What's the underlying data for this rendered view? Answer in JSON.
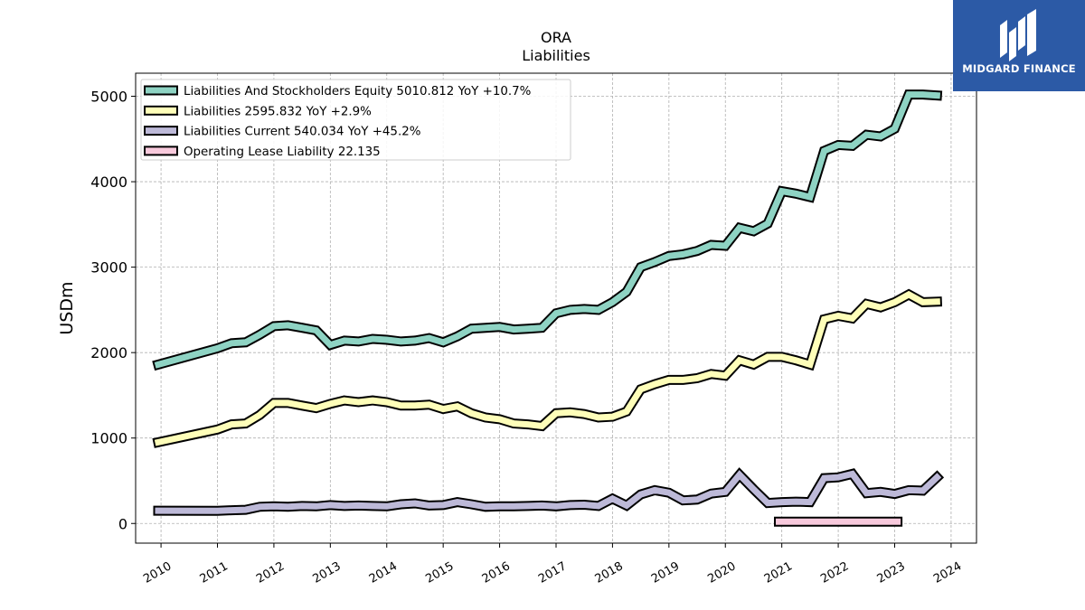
{
  "title": "ORA",
  "subtitle": "Liabilities",
  "logo": {
    "text": "MIDGARD FINANCE"
  },
  "colors": {
    "equity": "#8ed3c3",
    "liabilities": "#fefeb9",
    "current": "#bdb9d8",
    "lease": "#f8c9dc"
  },
  "chart_data": {
    "type": "line",
    "ylabel": "USDm",
    "ylim": [
      -230,
      5270
    ],
    "yticks": [
      0,
      1000,
      2000,
      3000,
      4000,
      5000
    ],
    "xlim": [
      2009.55,
      2024.45
    ],
    "xticks": [
      "2010",
      "2011",
      "2012",
      "2013",
      "2014",
      "2015",
      "2016",
      "2017",
      "2018",
      "2019",
      "2020",
      "2021",
      "2022",
      "2023",
      "2024"
    ],
    "grid": true,
    "legend_position": "top-left",
    "series": [
      {
        "name": "Liabilities And Stockholders Equity",
        "legend": "Liabilities And Stockholders Equity  5010.812 YoY +10.7%",
        "color_key": "equity",
        "points": [
          [
            2009.95,
            1860
          ],
          [
            2011.0,
            2050
          ],
          [
            2011.25,
            2110
          ],
          [
            2011.5,
            2120
          ],
          [
            2011.75,
            2210
          ],
          [
            2012.0,
            2310
          ],
          [
            2012.25,
            2320
          ],
          [
            2012.5,
            2290
          ],
          [
            2012.75,
            2260
          ],
          [
            2013.0,
            2090
          ],
          [
            2013.25,
            2140
          ],
          [
            2013.5,
            2130
          ],
          [
            2013.75,
            2160
          ],
          [
            2014.0,
            2150
          ],
          [
            2014.25,
            2130
          ],
          [
            2014.5,
            2140
          ],
          [
            2014.75,
            2170
          ],
          [
            2015.0,
            2120
          ],
          [
            2015.25,
            2190
          ],
          [
            2015.5,
            2280
          ],
          [
            2015.75,
            2290
          ],
          [
            2016.0,
            2300
          ],
          [
            2016.25,
            2270
          ],
          [
            2016.5,
            2280
          ],
          [
            2016.75,
            2290
          ],
          [
            2017.0,
            2460
          ],
          [
            2017.25,
            2500
          ],
          [
            2017.5,
            2510
          ],
          [
            2017.75,
            2500
          ],
          [
            2018.0,
            2590
          ],
          [
            2018.25,
            2710
          ],
          [
            2018.5,
            3000
          ],
          [
            2018.75,
            3060
          ],
          [
            2019.0,
            3130
          ],
          [
            2019.25,
            3150
          ],
          [
            2019.5,
            3190
          ],
          [
            2019.75,
            3260
          ],
          [
            2020.0,
            3250
          ],
          [
            2020.25,
            3460
          ],
          [
            2020.5,
            3420
          ],
          [
            2020.75,
            3510
          ],
          [
            2021.0,
            3890
          ],
          [
            2021.25,
            3860
          ],
          [
            2021.5,
            3820
          ],
          [
            2021.75,
            4360
          ],
          [
            2022.0,
            4430
          ],
          [
            2022.25,
            4420
          ],
          [
            2022.5,
            4550
          ],
          [
            2022.75,
            4530
          ],
          [
            2023.0,
            4620
          ],
          [
            2023.25,
            5020
          ],
          [
            2023.5,
            5020
          ],
          [
            2023.75,
            5010
          ]
        ]
      },
      {
        "name": "Liabilities",
        "legend": "Liabilities  2595.832 YoY +2.9%",
        "color_key": "liabilities",
        "points": [
          [
            2009.95,
            950
          ],
          [
            2011.0,
            1100
          ],
          [
            2011.25,
            1160
          ],
          [
            2011.5,
            1170
          ],
          [
            2011.75,
            1270
          ],
          [
            2012.0,
            1410
          ],
          [
            2012.25,
            1410
          ],
          [
            2012.5,
            1380
          ],
          [
            2012.75,
            1350
          ],
          [
            2013.0,
            1400
          ],
          [
            2013.25,
            1440
          ],
          [
            2013.5,
            1420
          ],
          [
            2013.75,
            1440
          ],
          [
            2014.0,
            1420
          ],
          [
            2014.25,
            1380
          ],
          [
            2014.5,
            1380
          ],
          [
            2014.75,
            1390
          ],
          [
            2015.0,
            1340
          ],
          [
            2015.25,
            1370
          ],
          [
            2015.5,
            1290
          ],
          [
            2015.75,
            1240
          ],
          [
            2016.0,
            1220
          ],
          [
            2016.25,
            1170
          ],
          [
            2016.5,
            1160
          ],
          [
            2016.75,
            1140
          ],
          [
            2017.0,
            1290
          ],
          [
            2017.25,
            1300
          ],
          [
            2017.5,
            1280
          ],
          [
            2017.75,
            1240
          ],
          [
            2018.0,
            1250
          ],
          [
            2018.25,
            1310
          ],
          [
            2018.5,
            1570
          ],
          [
            2018.75,
            1630
          ],
          [
            2019.0,
            1680
          ],
          [
            2019.25,
            1680
          ],
          [
            2019.5,
            1700
          ],
          [
            2019.75,
            1750
          ],
          [
            2020.0,
            1730
          ],
          [
            2020.25,
            1910
          ],
          [
            2020.5,
            1860
          ],
          [
            2020.75,
            1950
          ],
          [
            2021.0,
            1950
          ],
          [
            2021.25,
            1910
          ],
          [
            2021.5,
            1860
          ],
          [
            2021.75,
            2390
          ],
          [
            2022.0,
            2430
          ],
          [
            2022.25,
            2400
          ],
          [
            2022.5,
            2570
          ],
          [
            2022.75,
            2530
          ],
          [
            2023.0,
            2590
          ],
          [
            2023.25,
            2680
          ],
          [
            2023.5,
            2590
          ],
          [
            2023.75,
            2596
          ]
        ]
      },
      {
        "name": "Liabilities Current",
        "legend": "Liabilities Current  540.034 YoY +45.2%",
        "color_key": "current",
        "points": [
          [
            2009.95,
            150
          ],
          [
            2011.0,
            148
          ],
          [
            2011.25,
            155
          ],
          [
            2011.5,
            160
          ],
          [
            2011.75,
            195
          ],
          [
            2012.0,
            200
          ],
          [
            2012.25,
            195
          ],
          [
            2012.5,
            205
          ],
          [
            2012.75,
            200
          ],
          [
            2013.0,
            215
          ],
          [
            2013.25,
            205
          ],
          [
            2013.5,
            210
          ],
          [
            2013.75,
            205
          ],
          [
            2014.0,
            200
          ],
          [
            2014.25,
            225
          ],
          [
            2014.5,
            235
          ],
          [
            2014.75,
            210
          ],
          [
            2015.0,
            215
          ],
          [
            2015.25,
            250
          ],
          [
            2015.5,
            225
          ],
          [
            2015.75,
            195
          ],
          [
            2016.0,
            200
          ],
          [
            2016.25,
            200
          ],
          [
            2016.5,
            205
          ],
          [
            2016.75,
            210
          ],
          [
            2017.0,
            200
          ],
          [
            2017.25,
            215
          ],
          [
            2017.5,
            220
          ],
          [
            2017.75,
            205
          ],
          [
            2018.0,
            290
          ],
          [
            2018.25,
            210
          ],
          [
            2018.5,
            340
          ],
          [
            2018.75,
            390
          ],
          [
            2019.0,
            360
          ],
          [
            2019.25,
            270
          ],
          [
            2019.5,
            280
          ],
          [
            2019.75,
            350
          ],
          [
            2020.0,
            370
          ],
          [
            2020.25,
            570
          ],
          [
            2020.5,
            400
          ],
          [
            2020.75,
            240
          ],
          [
            2021.0,
            250
          ],
          [
            2021.25,
            255
          ],
          [
            2021.5,
            250
          ],
          [
            2021.75,
            530
          ],
          [
            2022.0,
            540
          ],
          [
            2022.25,
            580
          ],
          [
            2022.5,
            355
          ],
          [
            2022.75,
            370
          ],
          [
            2023.0,
            345
          ],
          [
            2023.25,
            390
          ],
          [
            2023.5,
            385
          ],
          [
            2023.75,
            540
          ]
        ]
      },
      {
        "name": "Operating Lease Liability",
        "legend": "Operating Lease Liability  22.135",
        "color_key": "lease",
        "points": [
          [
            2020.95,
            22
          ],
          [
            2021.25,
            22
          ],
          [
            2021.5,
            22
          ],
          [
            2021.75,
            22
          ],
          [
            2022.0,
            22
          ],
          [
            2022.25,
            22
          ],
          [
            2022.5,
            22
          ],
          [
            2022.75,
            22
          ],
          [
            2023.0,
            22
          ],
          [
            2023.05,
            22
          ]
        ]
      }
    ]
  }
}
